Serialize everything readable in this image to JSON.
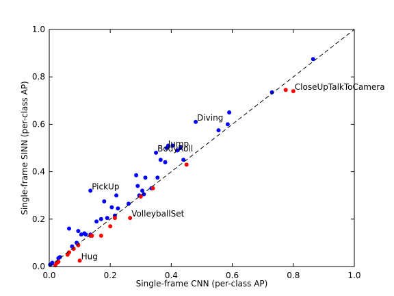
{
  "chart_data": {
    "type": "scatter",
    "xlabel": "Single-frame CNN (per-class AP)",
    "ylabel": "Single-frame SINN (per-class AP)",
    "xlim": [
      0,
      1
    ],
    "ylim": [
      0,
      1
    ],
    "x_ticks": [
      "0.0",
      "0.2",
      "0.4",
      "0.6",
      "0.8",
      "1.0"
    ],
    "y_ticks": [
      "0.0",
      "0.2",
      "0.4",
      "0.6",
      "0.8",
      "1.0"
    ],
    "reference_line": {
      "style": "dashed",
      "from": [
        0,
        0
      ],
      "to": [
        1,
        1
      ]
    },
    "grid": false,
    "series": [
      {
        "color": "#0000ff",
        "points": [
          [
            0.003,
            0.008
          ],
          [
            0.008,
            0.012
          ],
          [
            0.01,
            0.016
          ],
          [
            0.03,
            0.035
          ],
          [
            0.035,
            0.04
          ],
          [
            0.065,
            0.16
          ],
          [
            0.075,
            0.085
          ],
          [
            0.09,
            0.1
          ],
          [
            0.095,
            0.15
          ],
          [
            0.105,
            0.135
          ],
          [
            0.115,
            0.14
          ],
          [
            0.12,
            0.135
          ],
          [
            0.135,
            0.135
          ],
          [
            0.155,
            0.19
          ],
          [
            0.17,
            0.2
          ],
          [
            0.18,
            0.275
          ],
          [
            0.19,
            0.205
          ],
          [
            0.205,
            0.25
          ],
          [
            0.215,
            0.215
          ],
          [
            0.22,
            0.3
          ],
          [
            0.225,
            0.245
          ],
          [
            0.26,
            0.265
          ],
          [
            0.285,
            0.385
          ],
          [
            0.29,
            0.34
          ],
          [
            0.295,
            0.3
          ],
          [
            0.305,
            0.32
          ],
          [
            0.31,
            0.305
          ],
          [
            0.315,
            0.375
          ],
          [
            0.335,
            0.33
          ],
          [
            0.35,
            0.48
          ],
          [
            0.355,
            0.375
          ],
          [
            0.365,
            0.45
          ],
          [
            0.38,
            0.44
          ],
          [
            0.385,
            0.5
          ],
          [
            0.39,
            0.51
          ],
          [
            0.405,
            0.51
          ],
          [
            0.42,
            0.49
          ],
          [
            0.43,
            0.5
          ],
          [
            0.44,
            0.45
          ],
          [
            0.48,
            0.61
          ],
          [
            0.555,
            0.575
          ],
          [
            0.585,
            0.6
          ],
          [
            0.59,
            0.65
          ],
          [
            0.73,
            0.735
          ],
          [
            0.865,
            0.875
          ],
          [
            0.135,
            0.32
          ]
        ]
      },
      {
        "color": "#ff0000",
        "points": [
          [
            0.02,
            0.005
          ],
          [
            0.025,
            0.015
          ],
          [
            0.03,
            0.02
          ],
          [
            0.06,
            0.05
          ],
          [
            0.065,
            0.06
          ],
          [
            0.08,
            0.075
          ],
          [
            0.095,
            0.09
          ],
          [
            0.1,
            0.025
          ],
          [
            0.135,
            0.13
          ],
          [
            0.14,
            0.13
          ],
          [
            0.17,
            0.13
          ],
          [
            0.2,
            0.17
          ],
          [
            0.215,
            0.205
          ],
          [
            0.265,
            0.205
          ],
          [
            0.3,
            0.295
          ],
          [
            0.34,
            0.33
          ],
          [
            0.45,
            0.43
          ],
          [
            0.775,
            0.745
          ],
          [
            0.8,
            0.74
          ]
        ]
      }
    ],
    "annotations": [
      {
        "text": "CloseUpTalkToCamera",
        "x": 0.8,
        "y": 0.74
      },
      {
        "text": "Diving",
        "x": 0.48,
        "y": 0.61
      },
      {
        "text": "Jump",
        "x": 0.385,
        "y": 0.5
      },
      {
        "text": "BodyRoll",
        "x": 0.35,
        "y": 0.48
      },
      {
        "text": "PickUp",
        "x": 0.135,
        "y": 0.32
      },
      {
        "text": "VolleyballSet",
        "x": 0.265,
        "y": 0.205
      },
      {
        "text": "Hug",
        "x": 0.1,
        "y": 0.025
      }
    ]
  }
}
